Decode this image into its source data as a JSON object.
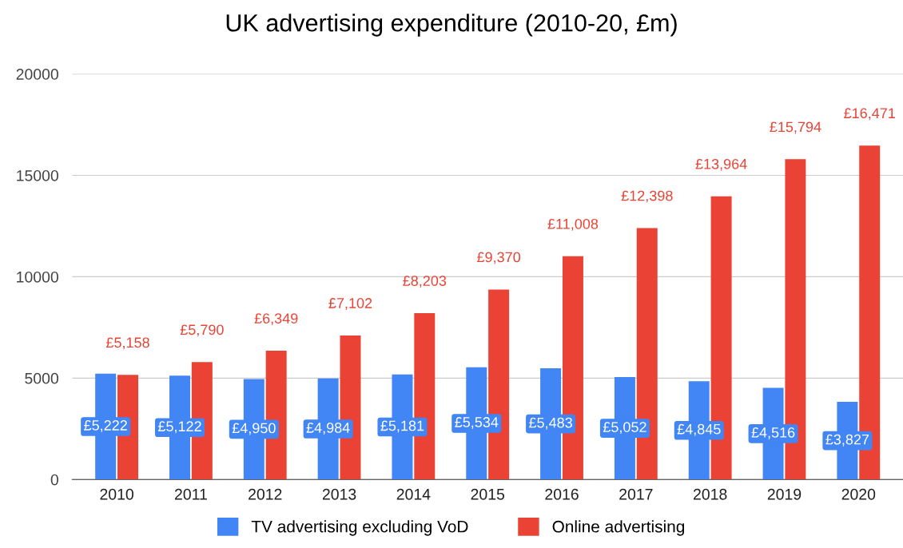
{
  "chart_data": {
    "type": "bar",
    "title": "UK advertising expenditure (2010-20, £m)",
    "categories": [
      "2010",
      "2011",
      "2012",
      "2013",
      "2014",
      "2015",
      "2016",
      "2017",
      "2018",
      "2019",
      "2020"
    ],
    "series": [
      {
        "name": "TV advertising excluding VoD",
        "color": "#4285f4",
        "values": [
          5222,
          5122,
          4950,
          4984,
          5181,
          5534,
          5483,
          5052,
          4845,
          4516,
          3827
        ],
        "value_labels": [
          "£5,222",
          "£5,122",
          "£4,950",
          "£4,984",
          "£5,181",
          "£5,534",
          "£5,483",
          "£5,052",
          "£4,845",
          "£4,516",
          "£3,827"
        ]
      },
      {
        "name": "Online advertising",
        "color": "#ea4335",
        "values": [
          5158,
          5790,
          6349,
          7102,
          8203,
          9370,
          11008,
          12398,
          13964,
          15794,
          16471
        ],
        "value_labels": [
          "£5,158",
          "£5,790",
          "£6,349",
          "£7,102",
          "£8,203",
          "£9,370",
          "£11,008",
          "£12,398",
          "£13,964",
          "£15,794",
          "£16,471"
        ]
      }
    ],
    "ylim": [
      0,
      20000
    ],
    "yticks": [
      0,
      5000,
      10000,
      15000,
      20000
    ],
    "grid": "y",
    "legend": "bottom"
  }
}
